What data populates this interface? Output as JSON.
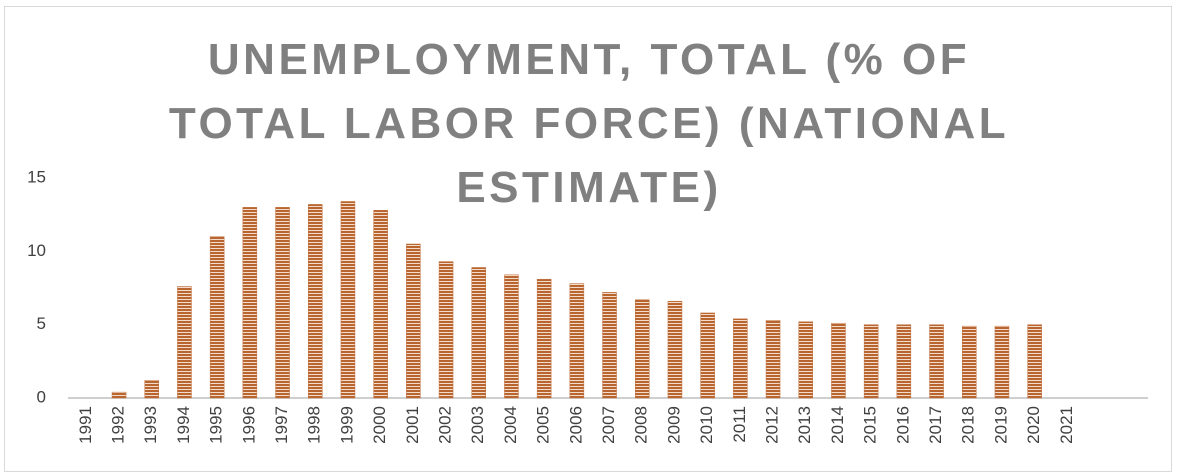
{
  "chart_data": {
    "type": "bar",
    "title": "UNEMPLOYMENT, TOTAL (% OF TOTAL LABOR FORCE) (NATIONAL ESTIMATE)",
    "categories": [
      "1991",
      "1992",
      "1993",
      "1994",
      "1995",
      "1996",
      "1997",
      "1998",
      "1999",
      "2000",
      "2001",
      "2002",
      "2003",
      "2004",
      "2005",
      "2006",
      "2007",
      "2008",
      "2009",
      "2010",
      "2011",
      "2012",
      "2013",
      "2014",
      "2015",
      "2016",
      "2017",
      "2018",
      "2019",
      "2020",
      "2021"
    ],
    "values": [
      null,
      0.4,
      1.2,
      7.6,
      11.0,
      13.0,
      13.0,
      13.2,
      13.4,
      12.8,
      10.5,
      9.3,
      8.9,
      8.4,
      8.1,
      7.8,
      7.2,
      6.7,
      6.6,
      5.8,
      5.4,
      5.3,
      5.2,
      5.1,
      5.0,
      5.0,
      5.0,
      4.9,
      4.9,
      5.0,
      null
    ],
    "color": "#c0703c",
    "ylim": [
      0,
      15
    ],
    "yticks": [
      0,
      5,
      10,
      15
    ],
    "grid": false
  }
}
